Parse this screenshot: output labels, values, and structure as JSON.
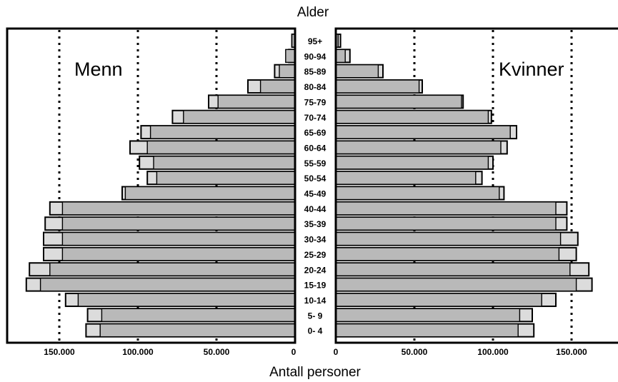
{
  "chart_data": {
    "type": "bar",
    "title": "Alder",
    "xlabel": "Antall personer",
    "left_label": "Menn",
    "right_label": "Kvinner",
    "xlim": [
      0,
      170000
    ],
    "x_ticks_left": [
      "150.000",
      "100.000",
      "50.000",
      "0"
    ],
    "x_ticks_right": [
      "0",
      "50.000",
      "100.000",
      "150.000"
    ],
    "tick_values": [
      0,
      50000,
      100000,
      150000
    ],
    "categories": [
      "95+",
      "90-94",
      "85-89",
      "80-84",
      "75-79",
      "70-74",
      "65-69",
      "60-64",
      "55-59",
      "50-54",
      "45-49",
      "40-44",
      "35-39",
      "30-34",
      "25-29",
      "20-24",
      "15-19",
      "10-14",
      "5- 9",
      "0- 4"
    ],
    "series": [
      {
        "name": "Menn",
        "values": [
          2000,
          6000,
          10000,
          22000,
          49000,
          71000,
          92000,
          94000,
          90000,
          88000,
          108000,
          148000,
          148000,
          148000,
          148000,
          156000,
          162000,
          138000,
          123000,
          124000
        ]
      },
      {
        "name": "Menn",
        "values": [
          2000,
          4000,
          13000,
          30000,
          55000,
          78000,
          98000,
          105000,
          99000,
          94000,
          110000,
          156000,
          159000,
          160000,
          160000,
          169000,
          171000,
          146000,
          132000,
          133000
        ]
      },
      {
        "name": "Kvinner",
        "values": [
          1500,
          6000,
          27000,
          53000,
          80000,
          97000,
          111000,
          105000,
          97000,
          89000,
          104000,
          140000,
          140000,
          143000,
          142000,
          149000,
          153000,
          131000,
          117000,
          116000
        ]
      },
      {
        "name": "Kvinner",
        "values": [
          3000,
          9000,
          30000,
          55000,
          81000,
          99000,
          115000,
          109000,
          100000,
          93000,
          107000,
          147000,
          147000,
          154000,
          153000,
          161000,
          163000,
          140000,
          125000,
          126000
        ]
      }
    ],
    "grid": true
  }
}
